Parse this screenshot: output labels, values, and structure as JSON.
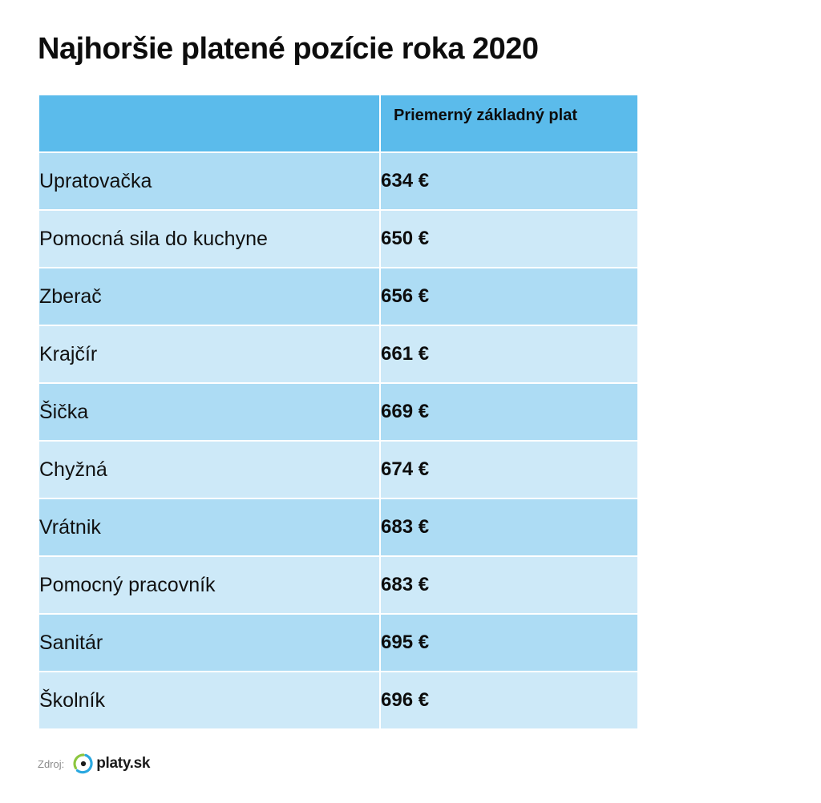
{
  "title": "Najhoršie platené pozície roka 2020",
  "table": {
    "header": {
      "position_col": "",
      "salary_col": "Priemerný základný plat"
    },
    "rows": [
      {
        "position": "Upratovačka",
        "salary": "634 €"
      },
      {
        "position": "Pomocná sila do kuchyne",
        "salary": "650 €"
      },
      {
        "position": "Zberač",
        "salary": "656 €"
      },
      {
        "position": "Krajčír",
        "salary": "661 €"
      },
      {
        "position": "Šička",
        "salary": "669 €"
      },
      {
        "position": "Chyžná",
        "salary": "674 €"
      },
      {
        "position": "Vrátnik",
        "salary": "683 €"
      },
      {
        "position": "Pomocný pracovník",
        "salary": "683 €"
      },
      {
        "position": "Sanitár",
        "salary": "695 €"
      },
      {
        "position": "Školník",
        "salary": "696 €"
      }
    ]
  },
  "source": {
    "label": "Zdroj:",
    "logo_text": "platy.sk",
    "logo_icon": "platy-logo-icon"
  },
  "colors": {
    "header_bg": "#5bbbeb",
    "row_dark": "#addcf4",
    "row_light": "#cde9f8",
    "logo_green": "#8cc63f",
    "logo_blue": "#2aa8e0"
  }
}
